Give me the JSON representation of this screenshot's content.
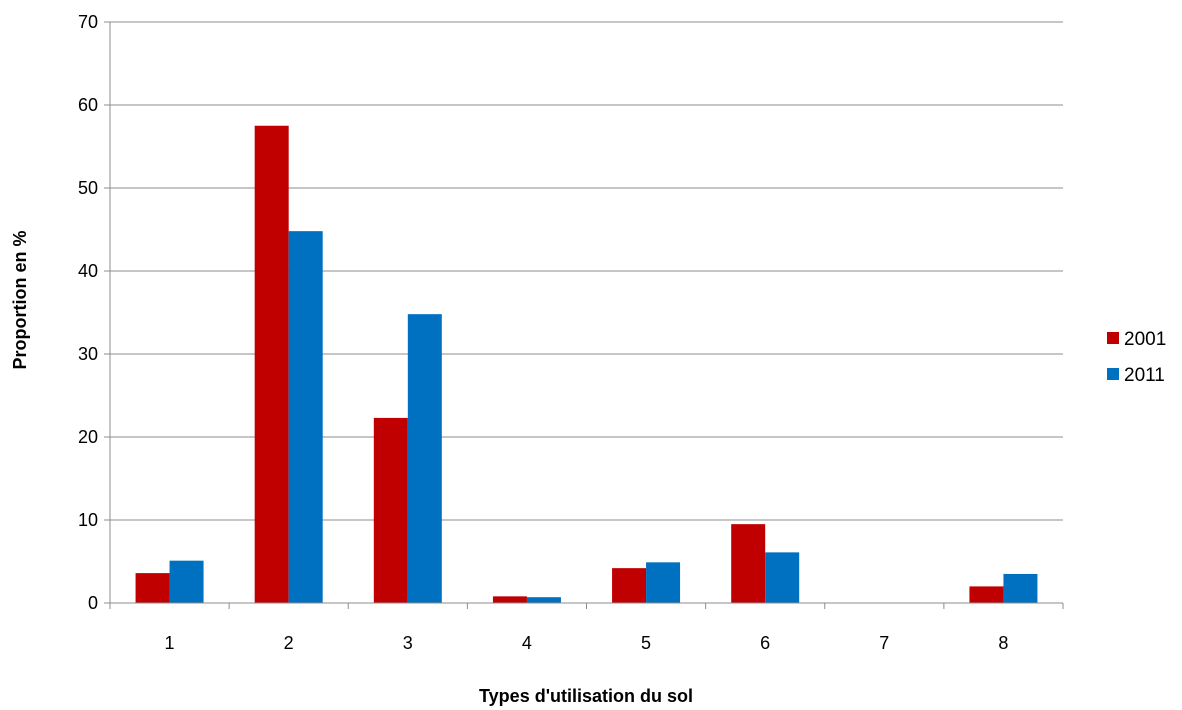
{
  "chart_data": {
    "type": "bar",
    "title": "",
    "xlabel": "Types d'utilisation du sol",
    "ylabel": "Proportion en %",
    "categories": [
      "1",
      "2",
      "3",
      "4",
      "5",
      "6",
      "7",
      "8"
    ],
    "series": [
      {
        "name": "2001",
        "color": "#c00000",
        "values": [
          3.6,
          57.5,
          22.3,
          0.8,
          4.2,
          9.5,
          0,
          2.0
        ]
      },
      {
        "name": "2011",
        "color": "#0070c0",
        "values": [
          5.1,
          44.8,
          34.8,
          0.7,
          4.9,
          6.1,
          0,
          3.5
        ]
      }
    ],
    "ylim": [
      0,
      70
    ],
    "yticks": [
      "0",
      "10",
      "20",
      "30",
      "40",
      "50",
      "60",
      "70"
    ],
    "grid": true,
    "legend_position": "right"
  }
}
